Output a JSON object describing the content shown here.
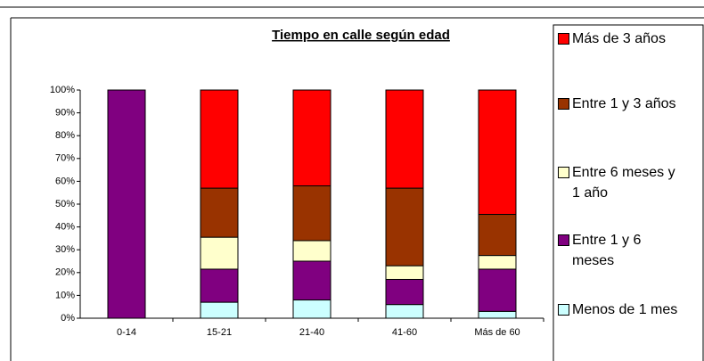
{
  "chart_data": {
    "type": "bar",
    "stacked": true,
    "title": "Tiempo en calle según edad",
    "categories": [
      "0-14",
      "15-21",
      "21-40",
      "41-60",
      "Más de 60"
    ],
    "series": [
      {
        "name": "Menos de 1 mes",
        "color": "#ccffff",
        "values": [
          0,
          7,
          8,
          6,
          3
        ]
      },
      {
        "name": "Entre 1 y 6 meses",
        "color": "#800080",
        "values": [
          100,
          14.5,
          17,
          11,
          18.5
        ]
      },
      {
        "name": "Entre 6 meses y 1 año",
        "color": "#ffffcc",
        "values": [
          0,
          14,
          9,
          6,
          6
        ]
      },
      {
        "name": "Entre 1 y 3 años",
        "color": "#993300",
        "values": [
          0,
          21.5,
          24,
          34,
          18
        ]
      },
      {
        "name": "Más de 3 años",
        "color": "#ff0000",
        "values": [
          0,
          43,
          42,
          43,
          54.5
        ]
      }
    ],
    "ylim": [
      0,
      100
    ],
    "yticks": [
      {
        "value": 0,
        "label": "0%"
      },
      {
        "value": 10,
        "label": "10%"
      },
      {
        "value": 20,
        "label": "20%"
      },
      {
        "value": 30,
        "label": "30%"
      },
      {
        "value": 40,
        "label": "40%"
      },
      {
        "value": 50,
        "label": "50%"
      },
      {
        "value": 60,
        "label": "60%"
      },
      {
        "value": 70,
        "label": "70%"
      },
      {
        "value": 80,
        "label": "80%"
      },
      {
        "value": 90,
        "label": "90%"
      },
      {
        "value": 100,
        "label": "100%"
      }
    ],
    "grid": false
  }
}
